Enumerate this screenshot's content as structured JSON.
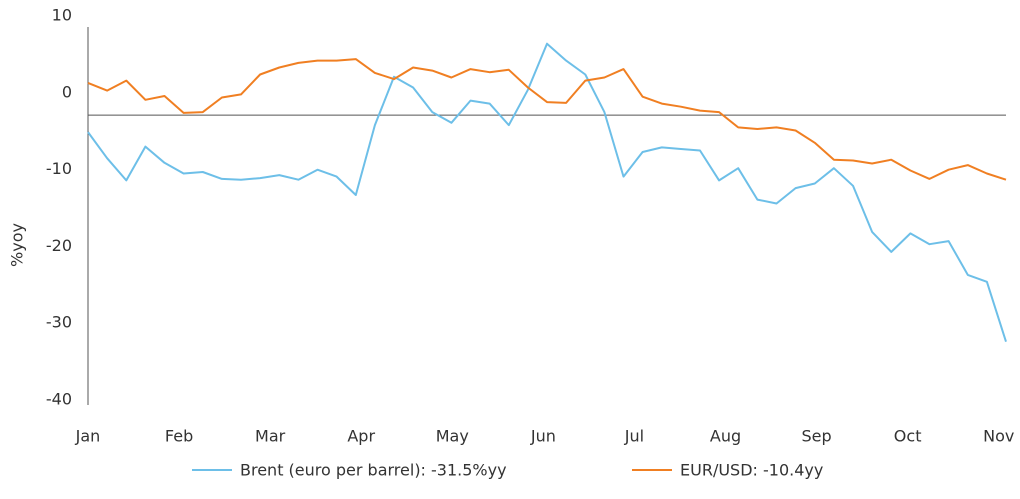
{
  "chart_data": {
    "type": "line",
    "y_label": "%yoy",
    "x": [
      0,
      0.21,
      0.42,
      0.63,
      0.84,
      1.05,
      1.26,
      1.47,
      1.68,
      1.89,
      2.1,
      2.31,
      2.52,
      2.73,
      2.94,
      3.15,
      3.36,
      3.57,
      3.78,
      3.99,
      4.2,
      4.41,
      4.62,
      4.83,
      5.04,
      5.25,
      5.46,
      5.67,
      5.88,
      6.09,
      6.3,
      6.51,
      6.72,
      6.93,
      7.14,
      7.35,
      7.56,
      7.77,
      7.98,
      8.19,
      8.4,
      8.61,
      8.82,
      9.03,
      9.24,
      9.45,
      9.66,
      9.87,
      10.08
    ],
    "series": [
      {
        "name": "Brent (euro per barrel): -31.5%yy",
        "color": "#6dbfe8",
        "values": [
          -4.2,
          -7.6,
          -10.5,
          -6.1,
          -8.2,
          -9.6,
          -9.4,
          -10.3,
          -10.4,
          -10.2,
          -9.8,
          -10.4,
          -9.1,
          -10.0,
          -12.4,
          -3.3,
          3.0,
          1.6,
          -1.6,
          -3.0,
          -0.1,
          -0.5,
          -3.3,
          1.3,
          7.3,
          5.1,
          3.3,
          -1.6,
          -10.0,
          -6.8,
          -6.2,
          -6.4,
          -6.6,
          -10.5,
          -8.9,
          -13.0,
          -13.5,
          -11.5,
          -10.9,
          -8.9,
          -11.2,
          -17.2,
          -19.8,
          -17.4,
          -18.8,
          -18.4,
          -22.8,
          -23.7,
          -31.5
        ]
      },
      {
        "name": "EUR/USD: -10.4yy",
        "color": "#f07f22",
        "values": [
          2.2,
          1.2,
          2.5,
          0,
          0.5,
          -1.7,
          -1.6,
          0.3,
          0.7,
          3.3,
          4.2,
          4.8,
          5.1,
          5.1,
          5.3,
          3.5,
          2.7,
          4.2,
          3.8,
          2.9,
          4.0,
          3.6,
          3.9,
          1.6,
          -0.3,
          -0.4,
          2.5,
          2.9,
          4.0,
          0.4,
          -0.5,
          -0.9,
          -1.4,
          -1.6,
          -3.6,
          -3.8,
          -3.6,
          -4.0,
          -5.6,
          -7.8,
          -7.9,
          -8.3,
          -7.8,
          -9.2,
          -10.3,
          -9.1,
          -8.5,
          -9.6,
          -10.4
        ]
      }
    ],
    "xlim": [
      0,
      10.08
    ],
    "xticks": [
      {
        "value": 0,
        "label": "Jan"
      },
      {
        "value": 1,
        "label": "Feb"
      },
      {
        "value": 2,
        "label": "Mar"
      },
      {
        "value": 3,
        "label": "Apr"
      },
      {
        "value": 4,
        "label": "May"
      },
      {
        "value": 5,
        "label": "Jun"
      },
      {
        "value": 6,
        "label": "Jul"
      },
      {
        "value": 7,
        "label": "Aug"
      },
      {
        "value": 8,
        "label": "Sep"
      },
      {
        "value": 9,
        "label": "Oct"
      },
      {
        "value": 10,
        "label": "Nov"
      }
    ],
    "ylim": [
      -40,
      10
    ],
    "yticks": [
      10,
      0,
      -10,
      -20,
      -30,
      -40
    ],
    "x_axis_crossing": -2,
    "legend": "bottom"
  }
}
